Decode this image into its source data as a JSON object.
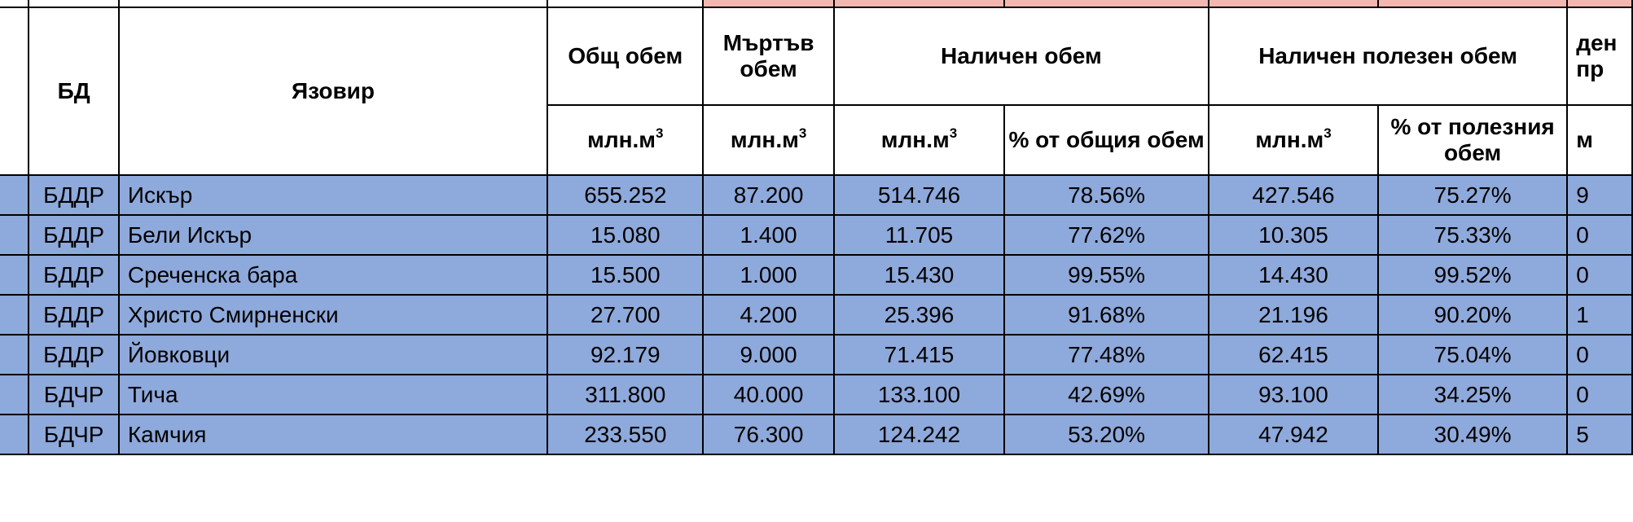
{
  "table": {
    "headers": {
      "bd": "БД",
      "reservoir": "Язовир",
      "total_volume": "Общ обем",
      "dead_volume": "Мъртъв обем",
      "available_volume": "Наличен обем",
      "available_useful_volume": "Наличен полезен обем",
      "partial_next": "ден\nпр",
      "unit_mln_m3": "млн.м",
      "unit_sup": "3",
      "pct_total": "% от общия обем",
      "pct_useful": "% от полезния обем",
      "partial_unit": "м"
    },
    "rows": [
      {
        "bd": "БДДР",
        "name": "Искър",
        "total": "655.252",
        "dead": "87.200",
        "avail": "514.746",
        "avail_pct": "78.56%",
        "useful": "427.546",
        "useful_pct": "75.27%",
        "next": "9"
      },
      {
        "bd": "БДДР",
        "name": "Бели Искър",
        "total": "15.080",
        "dead": "1.400",
        "avail": "11.705",
        "avail_pct": "77.62%",
        "useful": "10.305",
        "useful_pct": "75.33%",
        "next": "0"
      },
      {
        "bd": "БДДР",
        "name": "Среченска бара",
        "total": "15.500",
        "dead": "1.000",
        "avail": "15.430",
        "avail_pct": "99.55%",
        "useful": "14.430",
        "useful_pct": "99.52%",
        "next": "0"
      },
      {
        "bd": "БДДР",
        "name": "Христо Смирненски",
        "total": "27.700",
        "dead": "4.200",
        "avail": "25.396",
        "avail_pct": "91.68%",
        "useful": "21.196",
        "useful_pct": "90.20%",
        "next": "1"
      },
      {
        "bd": "БДДР",
        "name": "Йовковци",
        "total": "92.179",
        "dead": "9.000",
        "avail": "71.415",
        "avail_pct": "77.48%",
        "useful": "62.415",
        "useful_pct": "75.04%",
        "next": "0"
      },
      {
        "bd": "БДЧР",
        "name": "Тича",
        "total": "311.800",
        "dead": "40.000",
        "avail": "133.100",
        "avail_pct": "42.69%",
        "useful": "93.100",
        "useful_pct": "34.25%",
        "next": "0"
      },
      {
        "bd": "БДЧР",
        "name": "Камчия",
        "total": "233.550",
        "dead": "76.300",
        "avail": "124.242",
        "avail_pct": "53.20%",
        "useful": "47.942",
        "useful_pct": "30.49%",
        "next": "5"
      }
    ]
  }
}
